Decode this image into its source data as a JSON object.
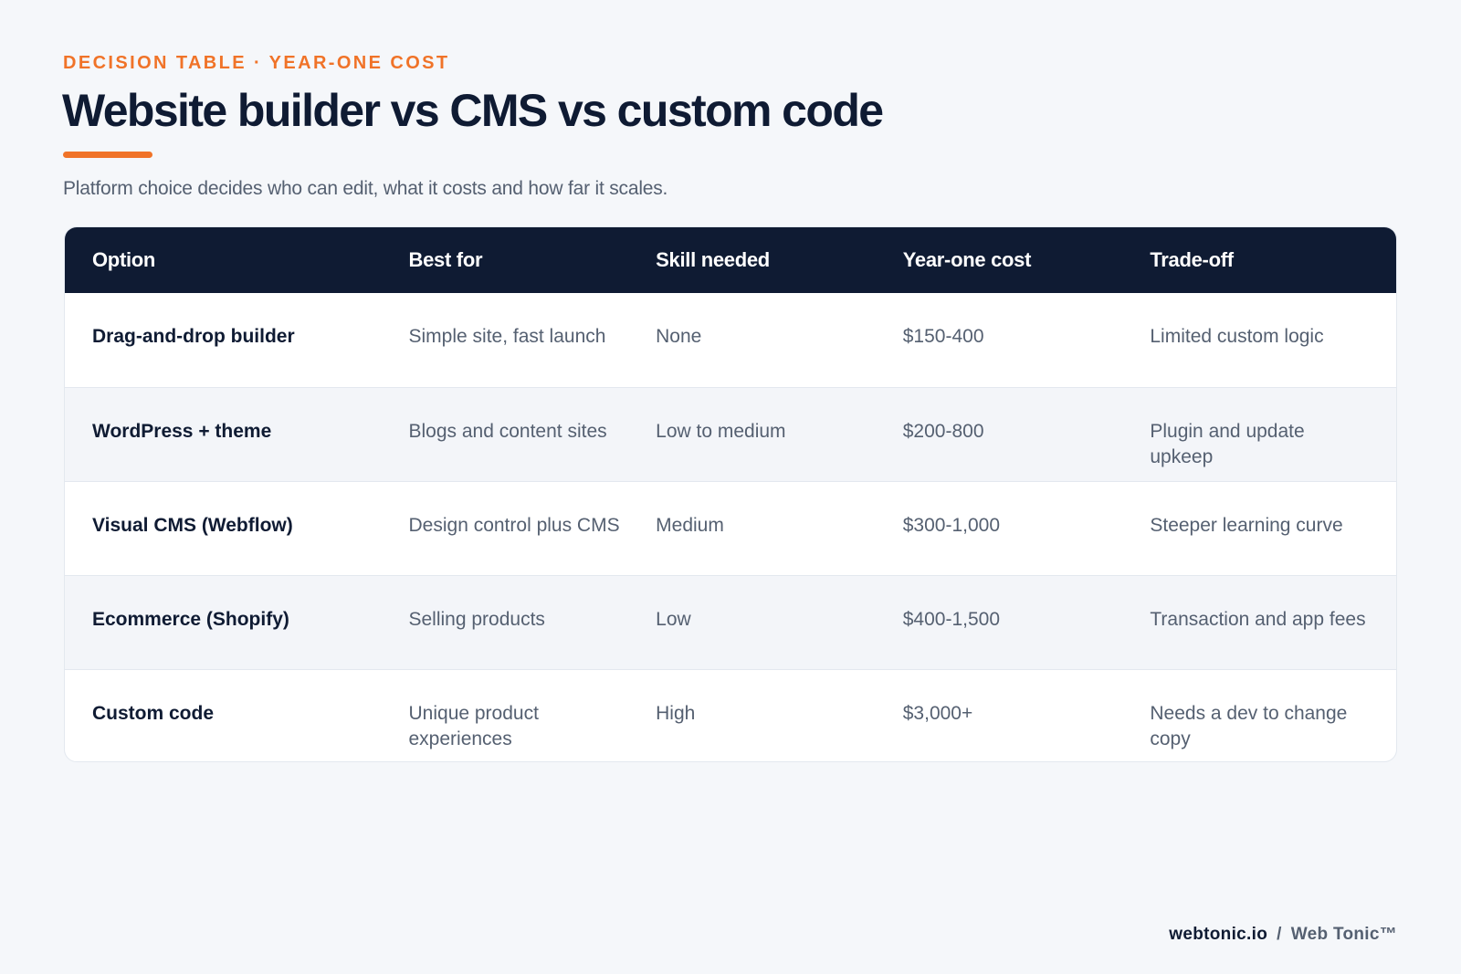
{
  "eyebrow": "DECISION TABLE · YEAR-ONE COST",
  "title": "Website builder vs CMS vs custom code",
  "subtitle": "Platform choice decides who can edit, what it costs and how far it scales.",
  "colors": {
    "accent": "#f07328",
    "navy": "#0f1b33",
    "muted": "#556071",
    "background": "#f5f7fa"
  },
  "table": {
    "headers": [
      "Option",
      "Best for",
      "Skill needed",
      "Year-one cost",
      "Trade-off"
    ],
    "rows": [
      [
        "Drag-and-drop builder",
        "Simple site, fast launch",
        "None",
        "$150-400",
        "Limited custom logic"
      ],
      [
        "WordPress + theme",
        "Blogs and content sites",
        "Low to medium",
        "$200-800",
        "Plugin and update upkeep"
      ],
      [
        "Visual CMS (Webflow)",
        "Design control plus CMS",
        "Medium",
        "$300-1,000",
        "Steeper learning curve"
      ],
      [
        "Ecommerce (Shopify)",
        "Selling products",
        "Low",
        "$400-1,500",
        "Transaction and app fees"
      ],
      [
        "Custom code",
        "Unique product experiences",
        "High",
        "$3,000+",
        "Needs a dev to change copy"
      ]
    ]
  },
  "footer": {
    "domain": "webtonic.io",
    "separator": "/",
    "brand": "Web Tonic™"
  }
}
